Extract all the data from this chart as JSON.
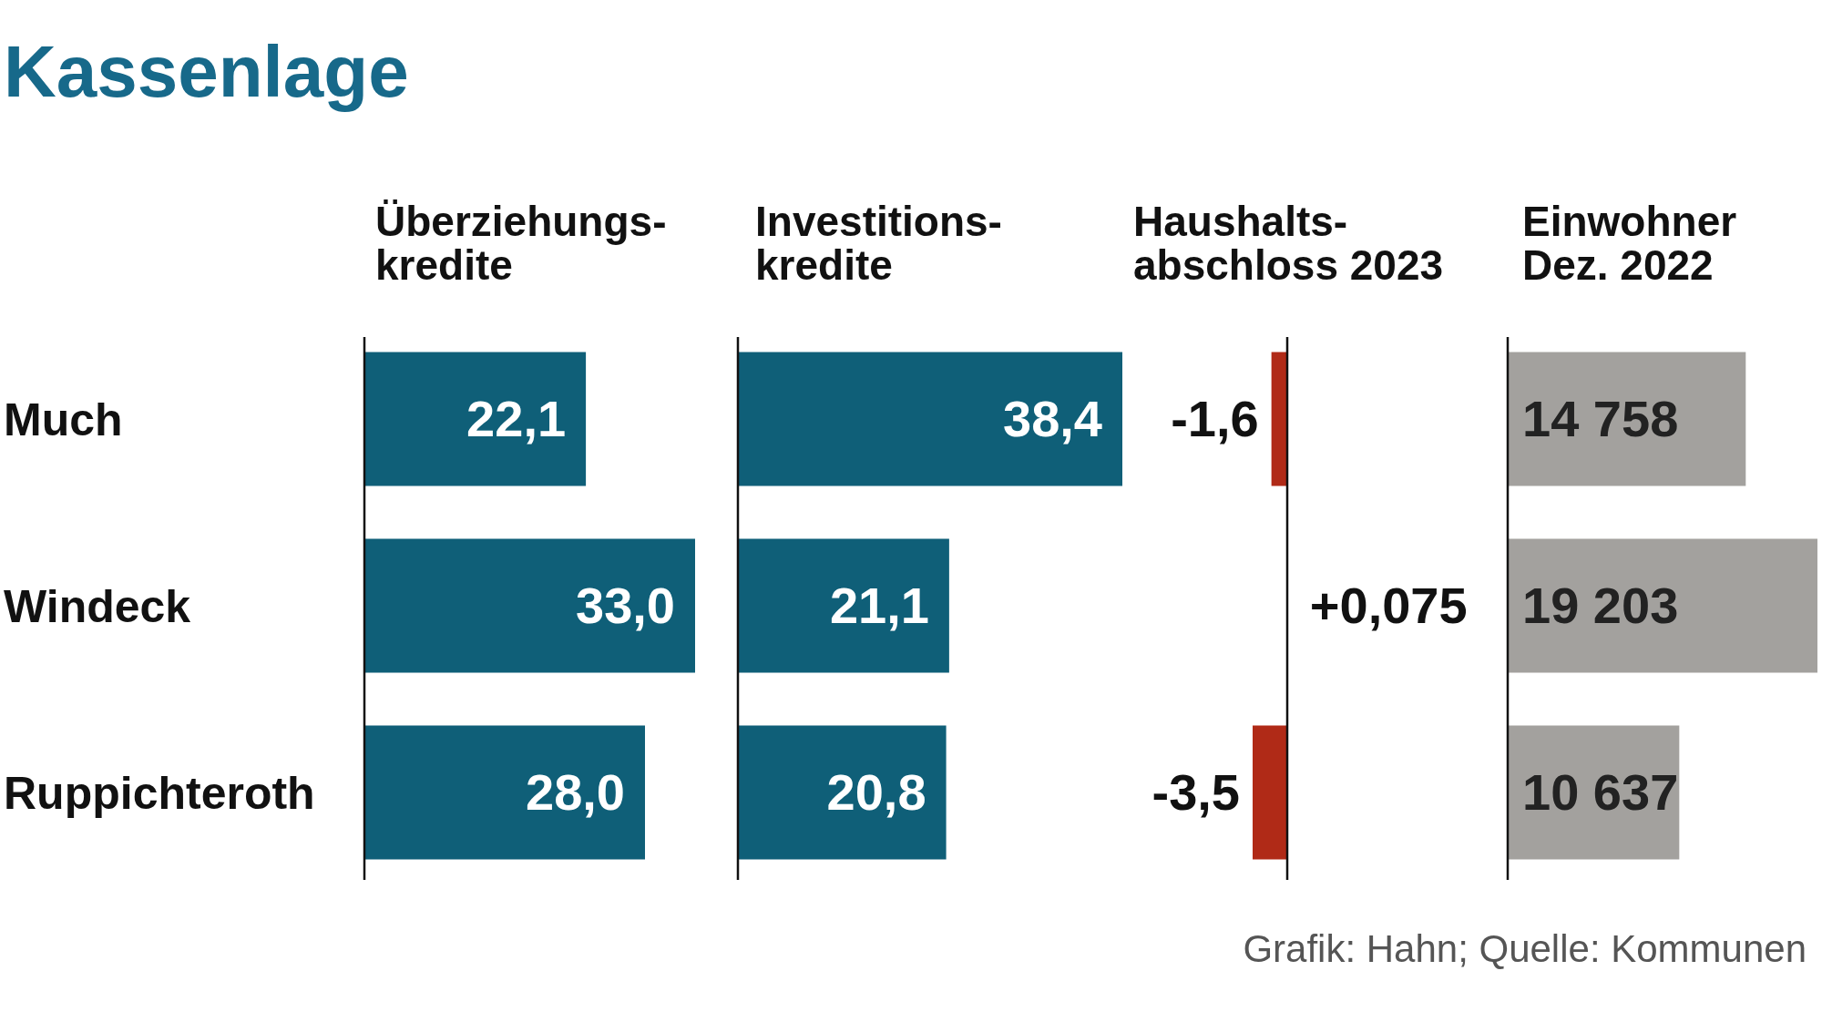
{
  "chart_data": [
    {
      "type": "bar",
      "orientation": "horizontal",
      "title": "Kassenlage",
      "subtitle": "Überziehungs-\nkredite",
      "categories": [
        "Much",
        "Windeck",
        "Ruppichteroth"
      ],
      "values": [
        22.1,
        33.0,
        28.0
      ],
      "value_labels": [
        "22,1",
        "33,0",
        "28,0"
      ],
      "color": "#0f5f78",
      "tick_labels": "y"
    },
    {
      "type": "bar",
      "orientation": "horizontal",
      "title": "Investitions-\nkredite",
      "categories": [
        null,
        null,
        null
      ],
      "values": [
        38.4,
        21.1,
        20.8
      ],
      "value_labels": [
        "38,4",
        "21,1",
        "20,8"
      ],
      "color": "#0f5f78",
      "tick_labels": false
    },
    {
      "type": "bar",
      "orientation": "horizontal",
      "title": "Haushalts-\nabschloss 2023",
      "categories": [
        null,
        null,
        null
      ],
      "values": [
        -1.6,
        0.075,
        -3.5
      ],
      "value_labels": [
        "-1,6",
        "+0,075",
        "-3,5"
      ],
      "color": "#b02a17",
      "tick_labels": false
    },
    {
      "type": "bar",
      "orientation": "horizontal",
      "title": "Einwohner\nDez. 2022",
      "categories": [
        null,
        null,
        null
      ],
      "values": [
        14758,
        19203,
        10637
      ],
      "value_labels": [
        "14 758",
        "19 203",
        "10 637"
      ],
      "color": "#a3a19e",
      "tick_labels": false,
      "annotations": [
        "Grafik: Hahn; Quelle: Kommunen"
      ]
    }
  ]
}
